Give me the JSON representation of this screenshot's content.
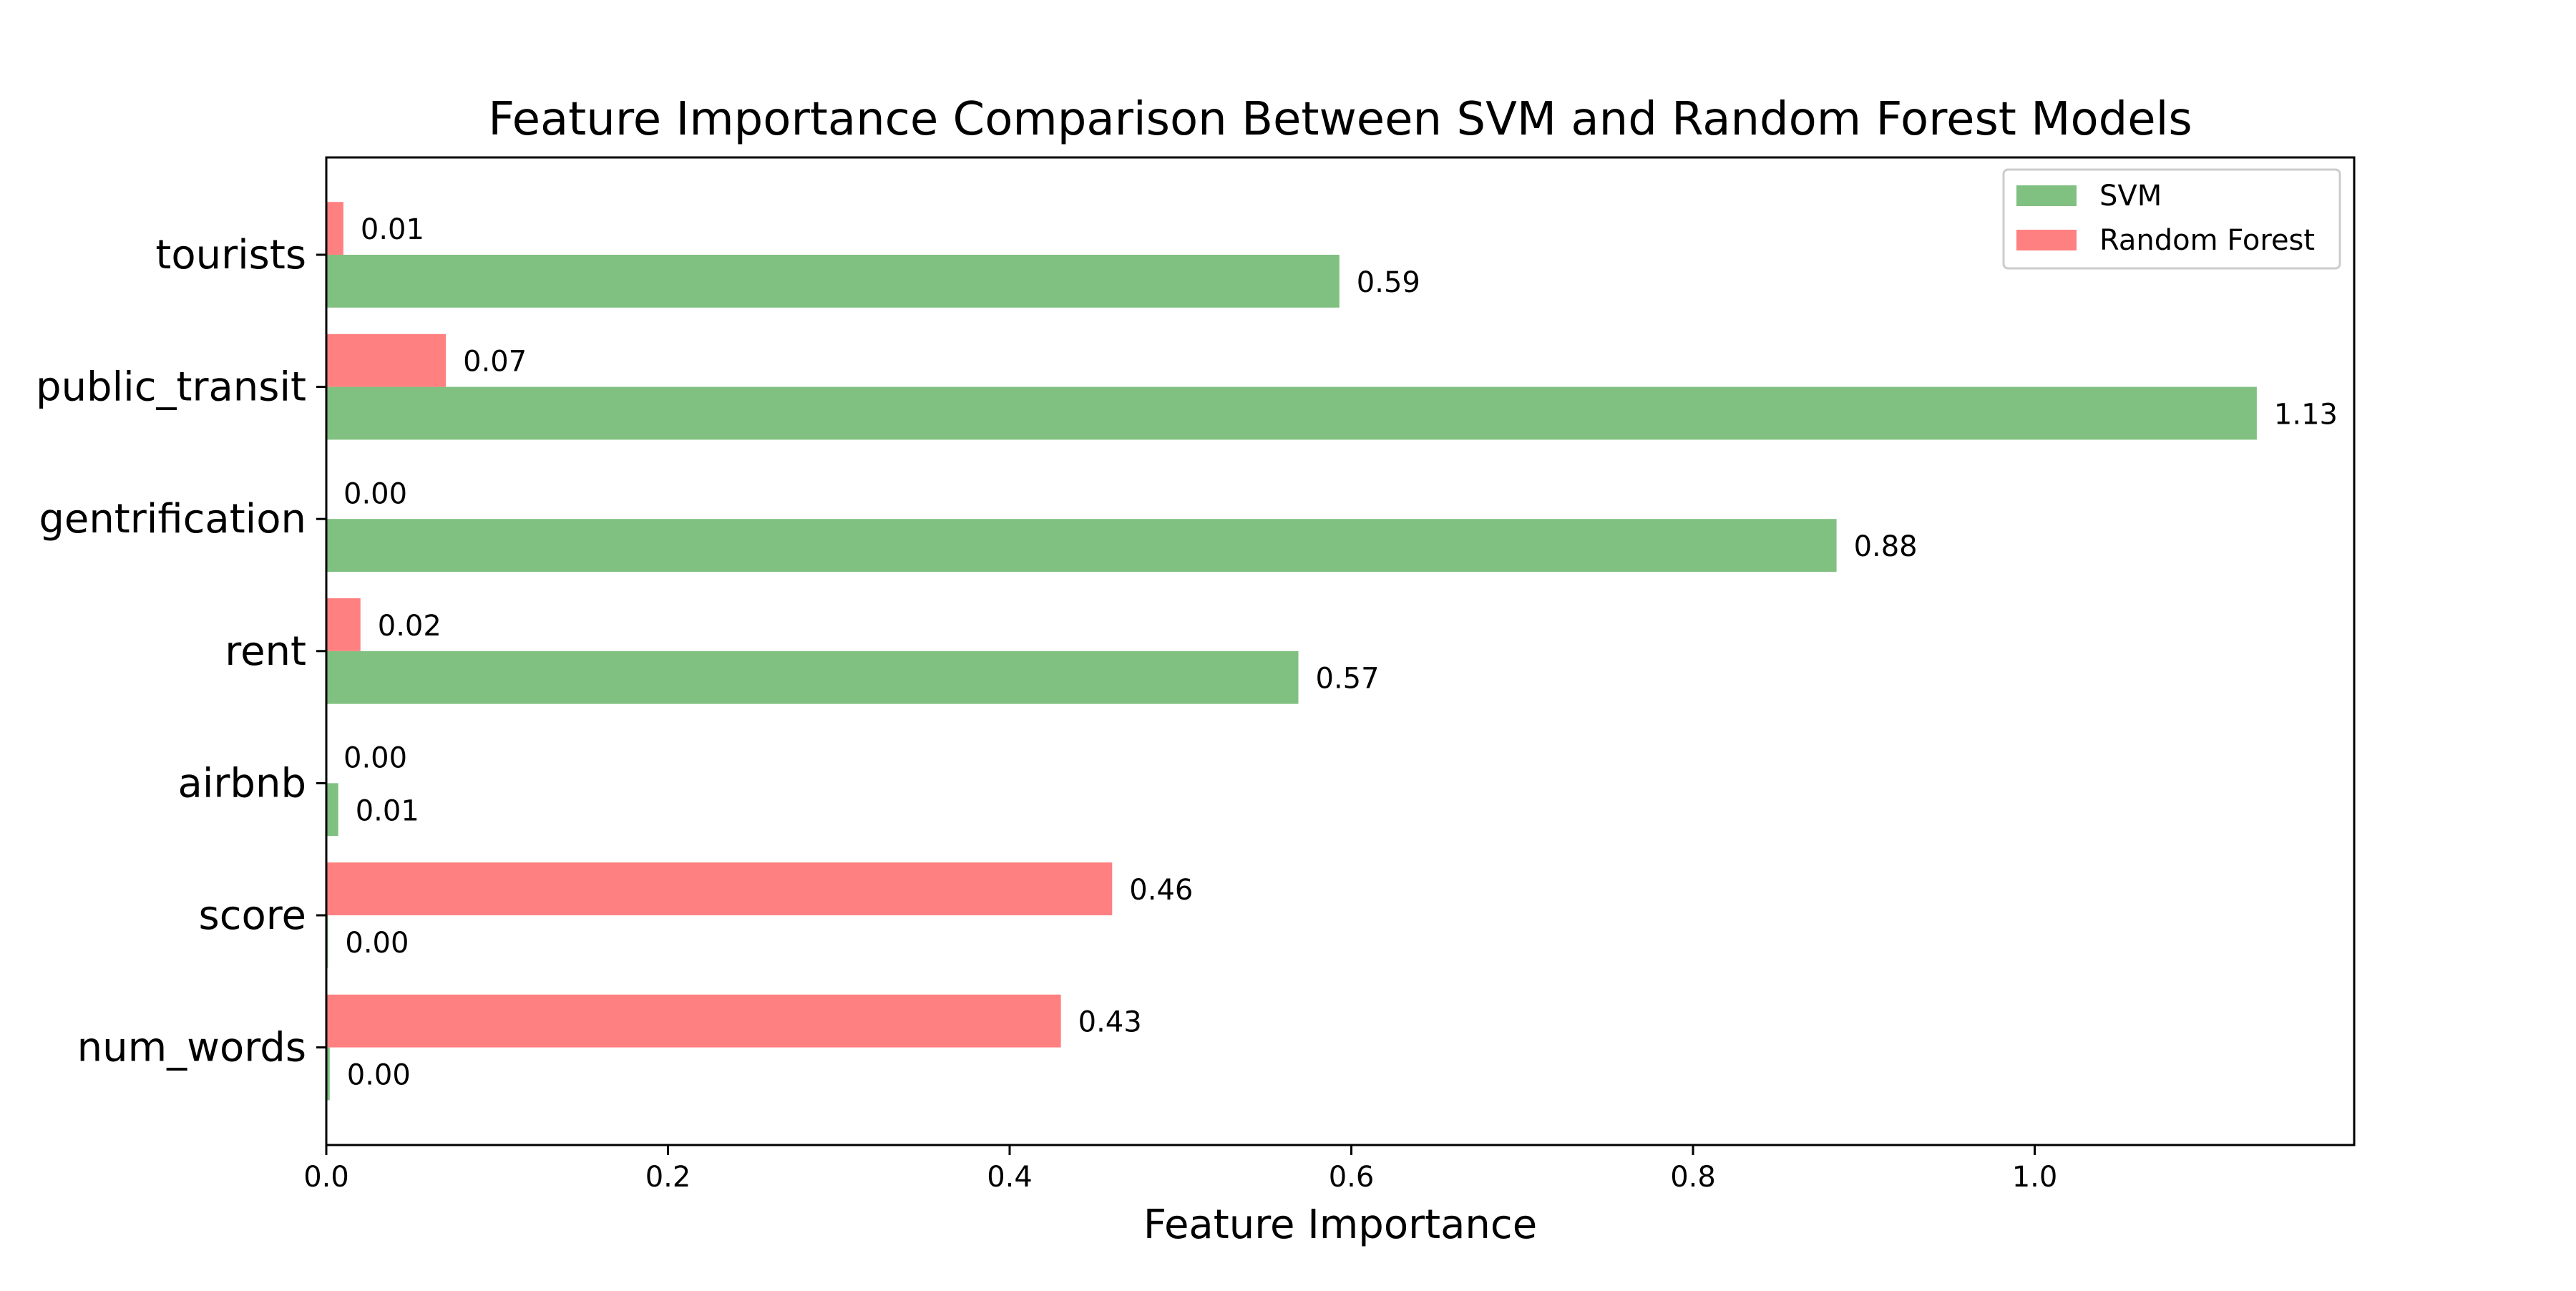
{
  "chart_data": {
    "type": "bar",
    "orientation": "horizontal",
    "title": "Feature Importance Comparison Between SVM and Random Forest Models",
    "xlabel": "Feature Importance",
    "ylabel": "",
    "xlim": [
      0,
      1.187
    ],
    "xticks": [
      "0.0",
      "0.2",
      "0.4",
      "0.6",
      "0.8",
      "1.0"
    ],
    "categories": [
      "tourists",
      "public_transit",
      "gentrification",
      "rent",
      "airbnb",
      "score",
      "num_words"
    ],
    "series": [
      {
        "name": "SVM",
        "color": "#80c080",
        "values": [
          0.593,
          1.13,
          0.884,
          0.569,
          0.007,
          0.001,
          0.002
        ],
        "labels": [
          "0.59",
          "1.13",
          "0.88",
          "0.57",
          "0.01",
          "0.00",
          "0.00"
        ]
      },
      {
        "name": "Random Forest",
        "color": "#ff8080",
        "values": [
          0.01,
          0.07,
          0.0,
          0.02,
          0.0,
          0.46,
          0.43
        ],
        "labels": [
          "0.01",
          "0.07",
          "0.00",
          "0.02",
          "0.00",
          "0.46",
          "0.43"
        ]
      }
    ],
    "legend_position": "top-right",
    "grid": false
  }
}
